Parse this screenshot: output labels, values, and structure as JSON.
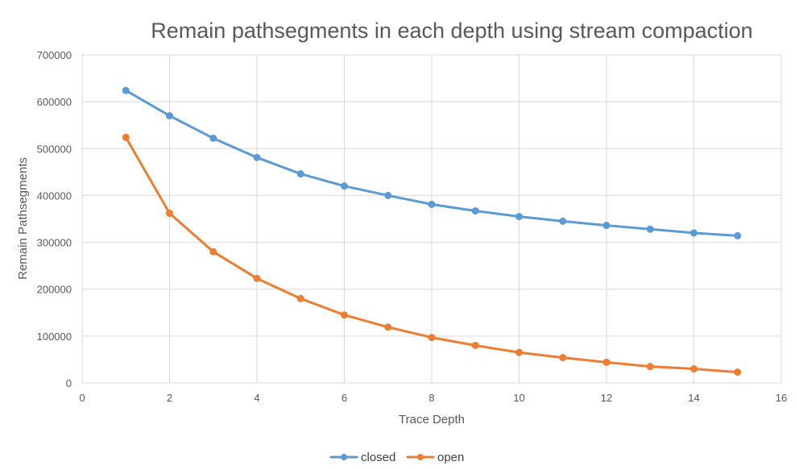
{
  "chart_data": {
    "type": "line",
    "title": "Remain pathsegments in each depth using stream compaction",
    "xlabel": "Trace Depth",
    "ylabel": "Remain Pathsegments",
    "xlim": [
      0,
      16
    ],
    "ylim": [
      0,
      700000
    ],
    "x_ticks": [
      0,
      2,
      4,
      6,
      8,
      10,
      12,
      14,
      16
    ],
    "y_ticks": [
      0,
      100000,
      200000,
      300000,
      400000,
      500000,
      600000,
      700000
    ],
    "x_tick_labels": [
      "0",
      "2",
      "4",
      "6",
      "8",
      "10",
      "12",
      "14",
      "16"
    ],
    "y_tick_labels": [
      "0",
      "100000",
      "200000",
      "300000",
      "400000",
      "500000",
      "600000",
      "700000"
    ],
    "grid": true,
    "legend_position": "bottom",
    "x": [
      1,
      2,
      3,
      4,
      5,
      6,
      7,
      8,
      9,
      10,
      11,
      12,
      13,
      14,
      15
    ],
    "series": [
      {
        "name": "closed",
        "color": "#5b9bd5",
        "values": [
          624000,
          570000,
          522000,
          481000,
          446000,
          420000,
          400000,
          381000,
          367000,
          355000,
          345000,
          336000,
          328000,
          320000,
          314000
        ]
      },
      {
        "name": "open",
        "color": "#ed7d31",
        "values": [
          524000,
          362000,
          280000,
          223000,
          180000,
          145000,
          119000,
          97000,
          80000,
          65000,
          54000,
          44000,
          35000,
          30000,
          23000
        ]
      }
    ]
  }
}
